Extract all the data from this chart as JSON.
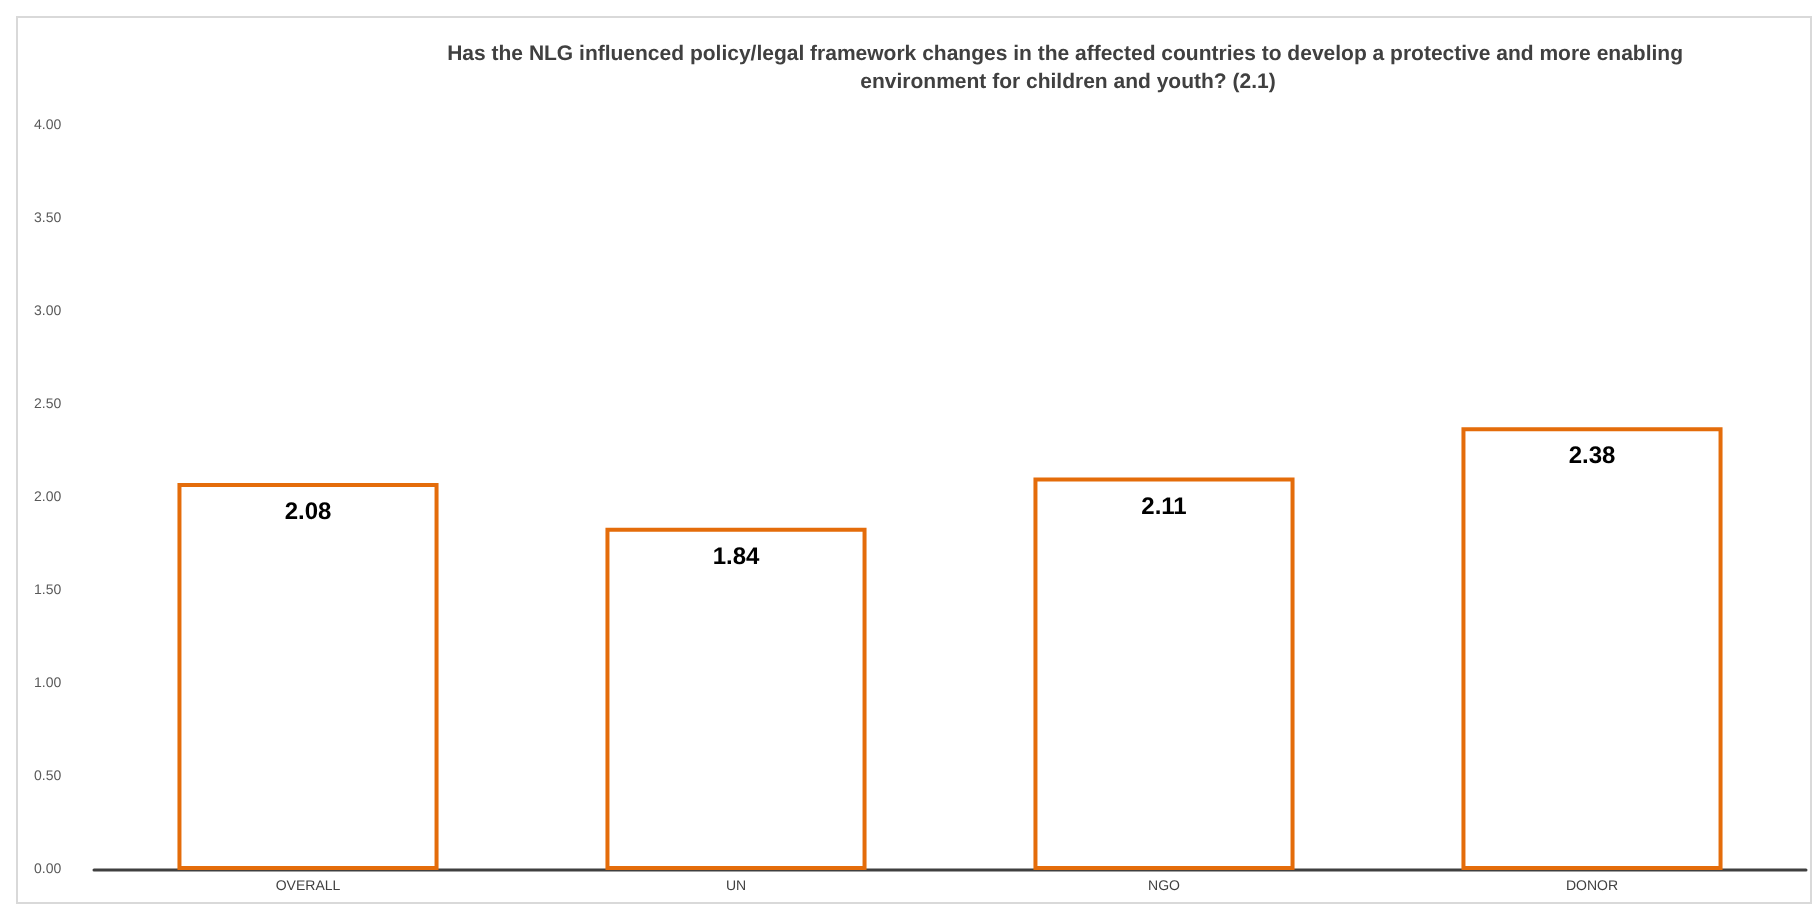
{
  "chart_data": {
    "type": "bar",
    "title": "Has the NLG influenced policy/legal framework changes in the affected countries to develop a protective and more enabling environment for children and youth? (2.1)",
    "categories": [
      "OVERALL",
      "UN",
      "NGO",
      "DONOR"
    ],
    "values": [
      2.08,
      1.84,
      2.11,
      2.38
    ],
    "color": "#e46c0a",
    "ylim": [
      0,
      4
    ],
    "yticks": [
      {
        "value": 0,
        "label": "0.00"
      },
      {
        "value": 0.5,
        "label": "0.50"
      },
      {
        "value": 1,
        "label": "1.00"
      },
      {
        "value": 1.5,
        "label": "1.50"
      },
      {
        "value": 2,
        "label": "2.00"
      },
      {
        "value": 2.5,
        "label": "2.50"
      },
      {
        "value": 3,
        "label": "3.00"
      },
      {
        "value": 3.5,
        "label": "3.50"
      },
      {
        "value": 4,
        "label": "4.00"
      }
    ],
    "data_labels": true
  }
}
